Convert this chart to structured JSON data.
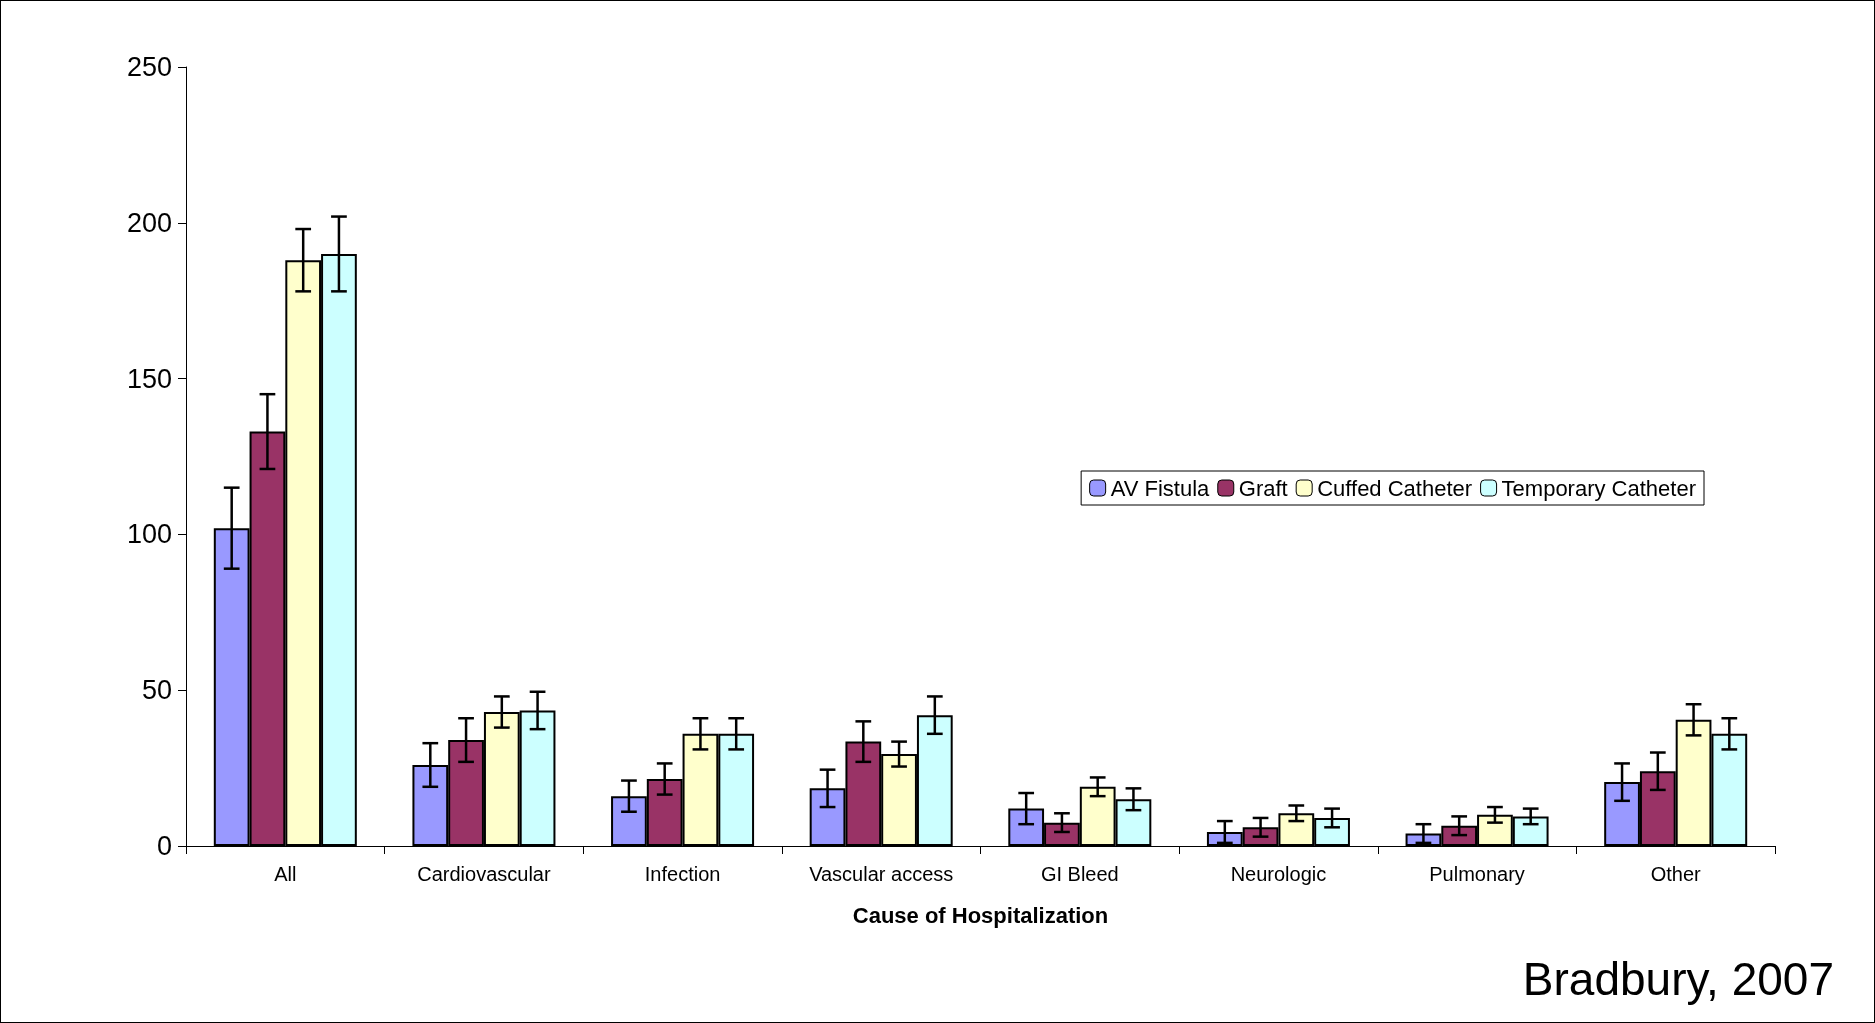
{
  "chart_data": {
    "type": "bar",
    "xlabel": "Cause of Hospitalization",
    "annotations": [
      "Bradbury, 2007"
    ],
    "categories": [
      "All",
      "Cardiovascular",
      "Infection",
      "Vascular access",
      "GI Bleed",
      "Neurologic",
      "Pulmonary",
      "Other"
    ],
    "series": [
      {
        "name": "AV Fistula",
        "color": "#9999ff",
        "values": [
          102,
          26,
          16,
          18.5,
          12,
          4.5,
          4,
          20.5
        ],
        "errors": [
          13,
          7,
          5,
          6,
          5,
          3.5,
          3,
          6
        ]
      },
      {
        "name": "Graft",
        "color": "#993366",
        "values": [
          133,
          34,
          21.5,
          33.5,
          7.5,
          6,
          6.5,
          24
        ],
        "errors": [
          12,
          7,
          5,
          6.5,
          3,
          3,
          3,
          6
        ]
      },
      {
        "name": "Cuffed Catheter",
        "color": "#ffffcc",
        "values": [
          188,
          43,
          36,
          29.5,
          19,
          10.5,
          10,
          40.5
        ],
        "errors": [
          10,
          5,
          5,
          4,
          3,
          2.5,
          2.5,
          5
        ]
      },
      {
        "name": "Temporary Catheter",
        "color": "#ccffff",
        "values": [
          190,
          43.5,
          36,
          42,
          15,
          9,
          9.5,
          36
        ],
        "errors": [
          12,
          6,
          5,
          6,
          3.5,
          3,
          2.5,
          5
        ]
      }
    ],
    "ylim": [
      0,
      250
    ],
    "yticks": [
      0,
      50,
      100,
      150,
      200,
      250
    ],
    "grid": false,
    "legend": "right"
  }
}
